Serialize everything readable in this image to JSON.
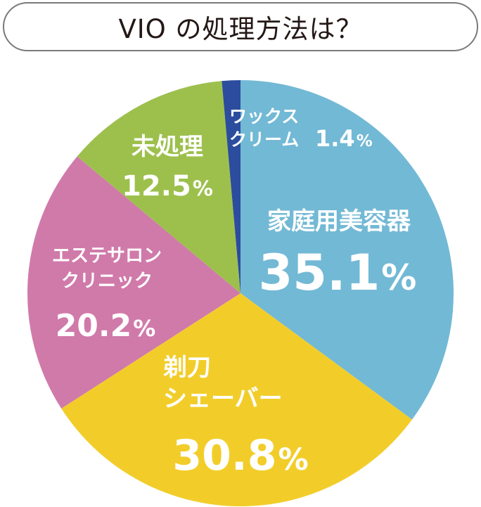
{
  "title": "VIO の処理方法は？",
  "chart_data": {
    "type": "pie",
    "title": "VIO の処理方法は？",
    "unit": "%",
    "start_angle_deg": 0,
    "direction": "clockwise",
    "slices": [
      {
        "label": [
          "家庭用美容器"
        ],
        "value": 35.1,
        "color": "#72b9d5"
      },
      {
        "label": [
          "剃刀",
          "シェーバー"
        ],
        "value": 30.8,
        "color": "#f2cd2a"
      },
      {
        "label": [
          "エステサロン",
          "クリニック"
        ],
        "value": 20.2,
        "color": "#d07aaa"
      },
      {
        "label": [
          "未処理"
        ],
        "value": 12.5,
        "color": "#9dc04d"
      },
      {
        "label": [
          "ワックス",
          "クリーム"
        ],
        "value": 1.4,
        "color": "#2c4d9d"
      }
    ]
  }
}
